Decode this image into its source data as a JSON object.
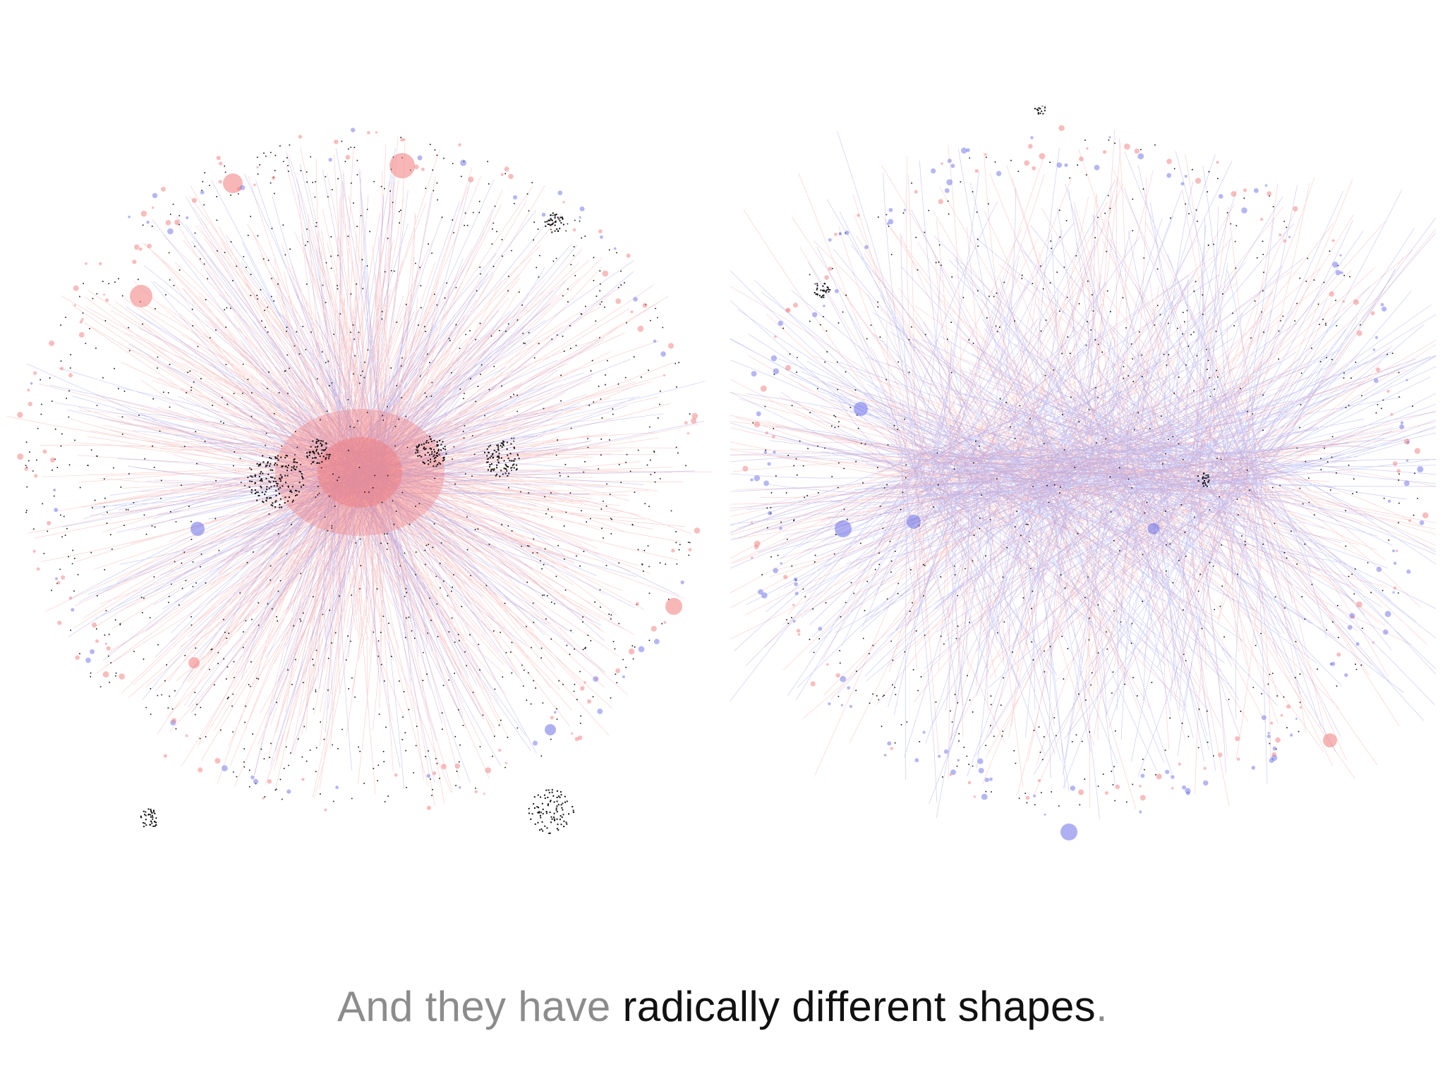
{
  "caption": {
    "prefix": "And they have ",
    "emphasis": "radically different shapes",
    "suffix": "."
  },
  "colors": {
    "background": "#ffffff",
    "red_edges": "#f27b7b",
    "blue_edges": "#6b6fe8",
    "node_black": "#111111",
    "caption_dim": "#8c8c8c",
    "caption_strong": "#111111"
  },
  "networks": [
    {
      "id": "left",
      "dominant_color": "red",
      "structure": "dense central hub with dense black node clusters"
    },
    {
      "id": "right",
      "dominant_color": "blue",
      "structure": "diffuse radial spread with horizontal core"
    }
  ]
}
